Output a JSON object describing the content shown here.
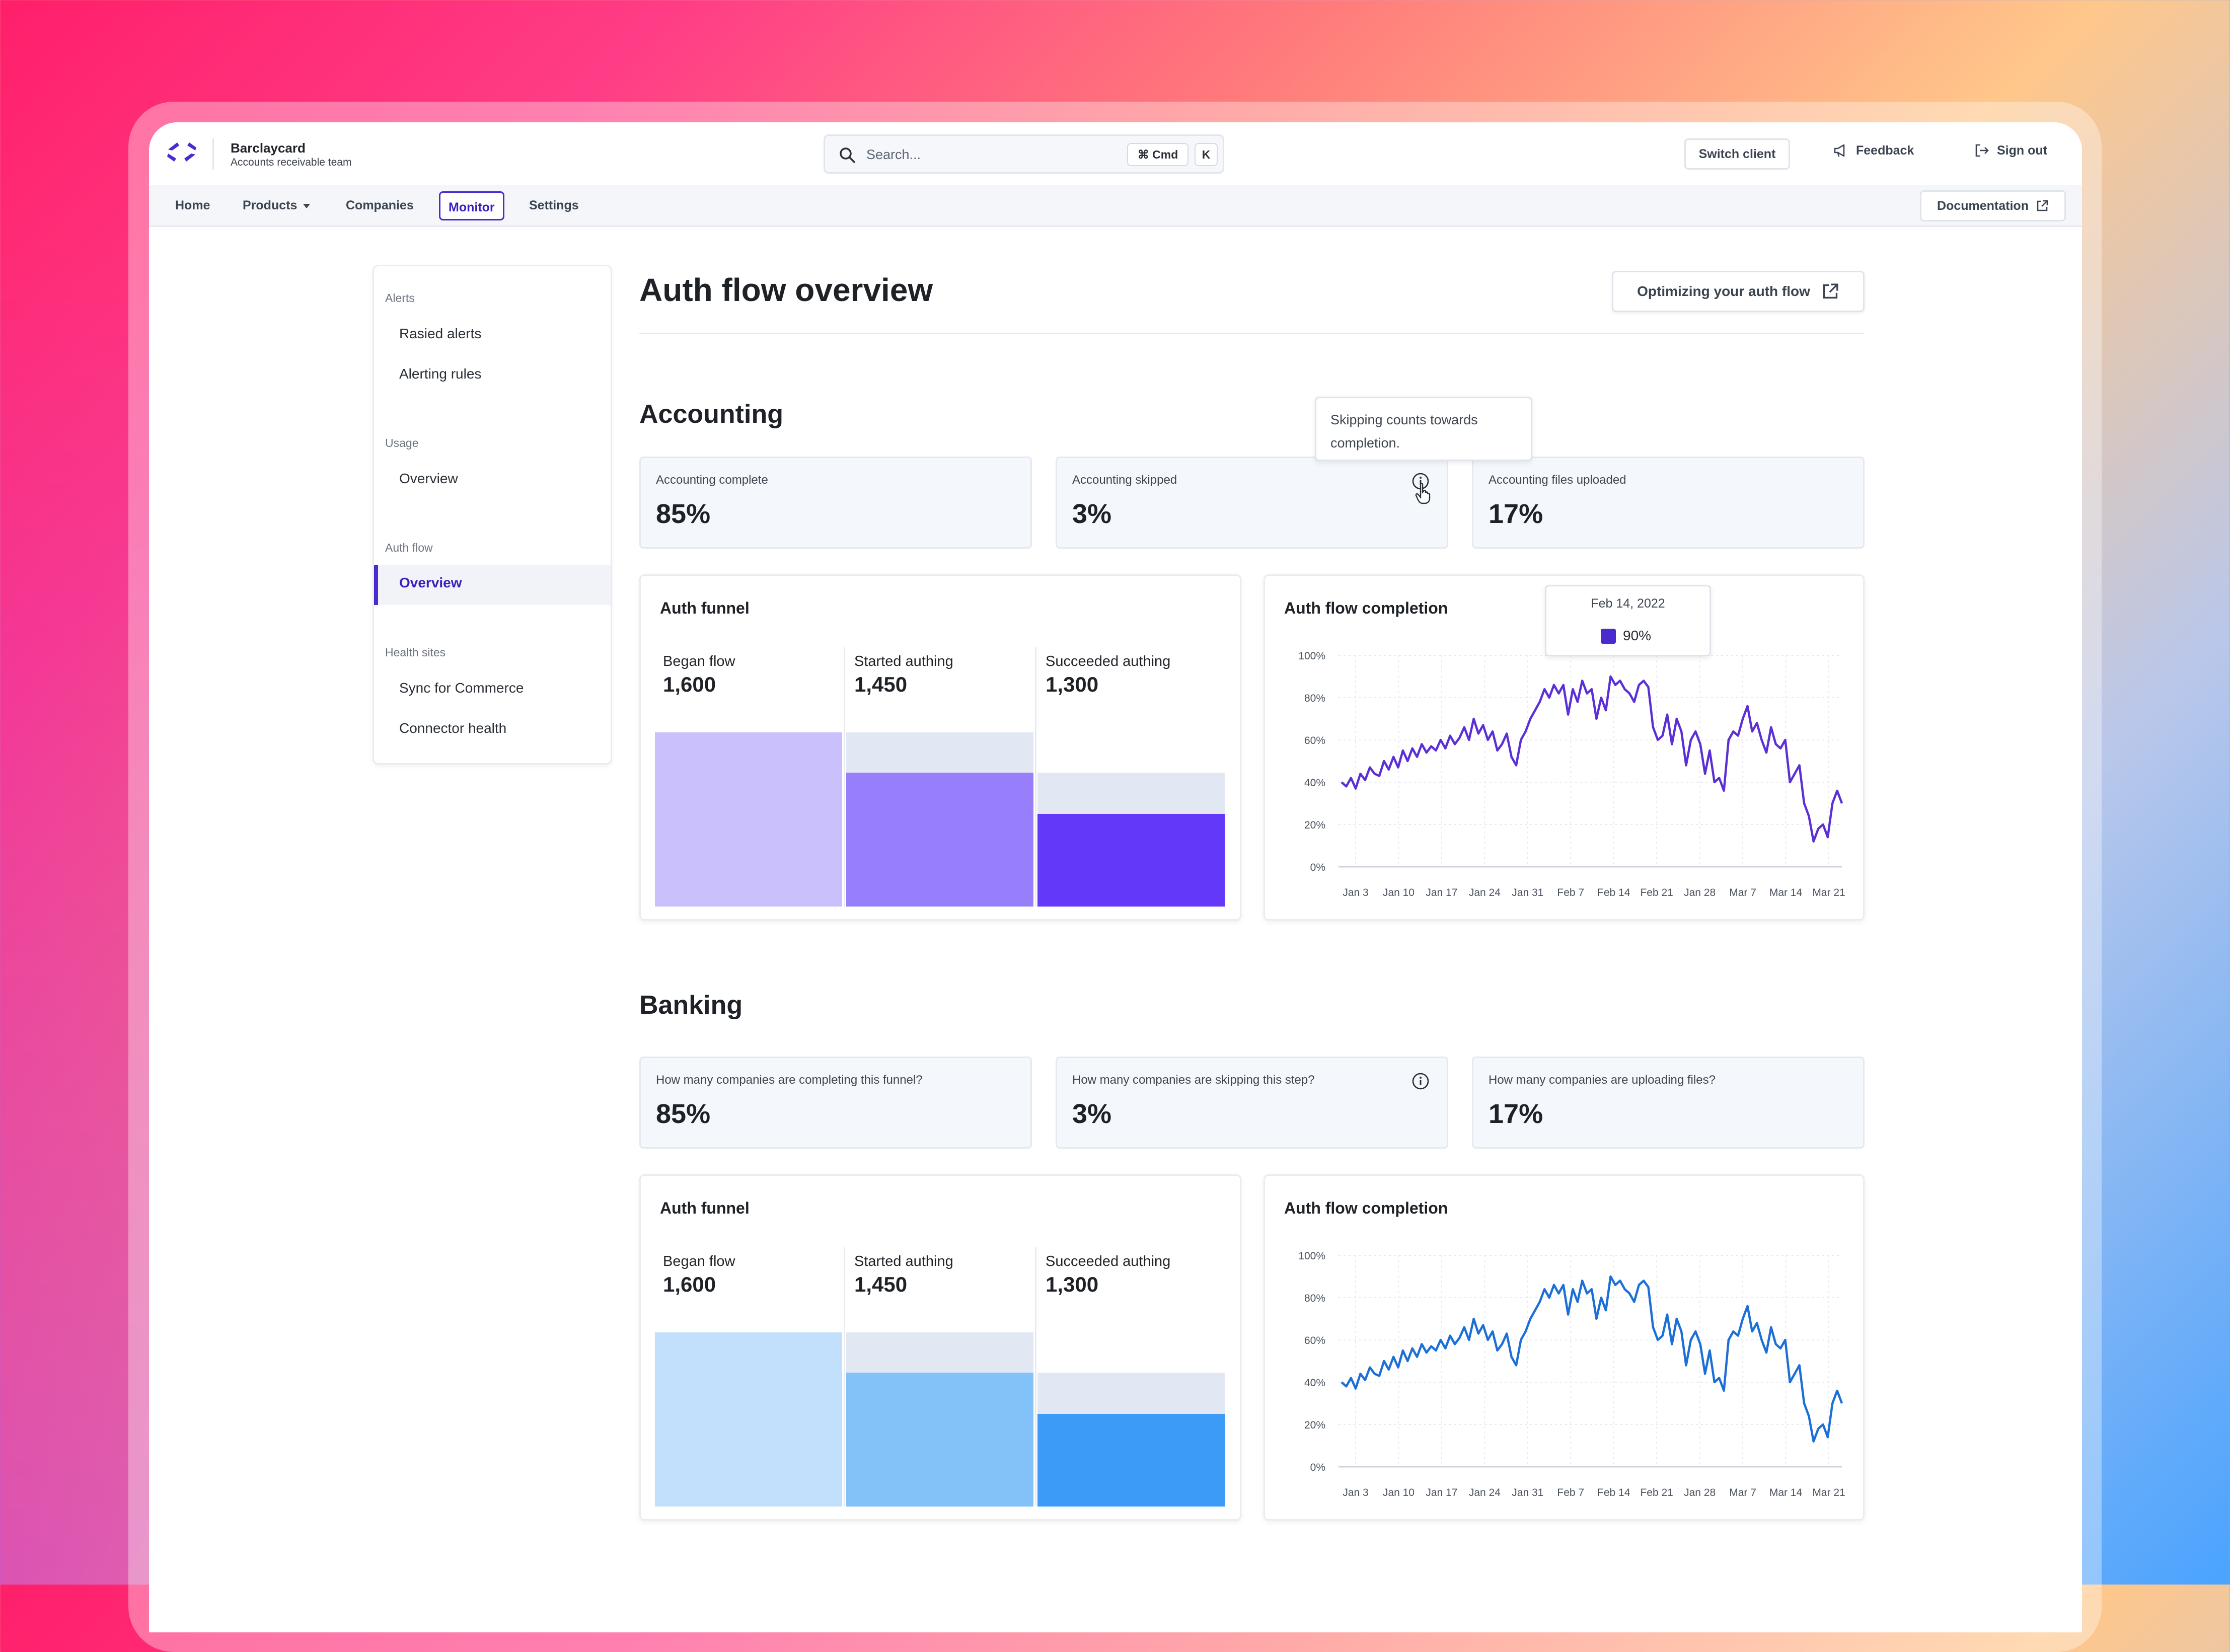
{
  "header": {
    "brand_name": "Barclaycard",
    "brand_subtitle": "Accounts receivable team",
    "search_placeholder": "Search...",
    "kbd_cmd": "⌘ Cmd",
    "kbd_k": "K",
    "switch_client": "Switch client",
    "feedback": "Feedback",
    "sign_out": "Sign out"
  },
  "nav": {
    "items": [
      "Home",
      "Products",
      "Companies",
      "Monitor",
      "Settings"
    ],
    "active": "Monitor",
    "documentation": "Documentation"
  },
  "sidebar": {
    "groups": [
      {
        "label": "Alerts",
        "items": [
          "Rasied alerts",
          "Alerting rules"
        ]
      },
      {
        "label": "Usage",
        "items": [
          "Overview"
        ]
      },
      {
        "label": "Auth flow",
        "items": [
          "Overview"
        ]
      },
      {
        "label": "Health sites",
        "items": [
          "Sync for Commerce",
          "Connector health"
        ]
      }
    ],
    "active_item": "Overview"
  },
  "page": {
    "title": "Auth flow overview",
    "doc_button": "Optimizing your auth flow"
  },
  "accounting": {
    "title": "Accounting",
    "stats": [
      {
        "label": "Accounting complete",
        "value": "85%"
      },
      {
        "label": "Accounting skipped",
        "value": "3%"
      },
      {
        "label": "Accounting files uploaded",
        "value": "17%"
      }
    ],
    "info_tooltip": "Skipping counts towards completion.",
    "funnel": {
      "title": "Auth funnel",
      "steps": [
        {
          "label": "Began flow",
          "value": "1,600"
        },
        {
          "label": "Started authing",
          "value": "1,450"
        },
        {
          "label": "Succeeded authing",
          "value": "1,300"
        }
      ]
    },
    "completion": {
      "title": "Auth flow completion",
      "tooltip_date": "Feb 14, 2022",
      "tooltip_value": "90%"
    }
  },
  "banking": {
    "title": "Banking",
    "stats": [
      {
        "label": "How many companies are completing this funnel?",
        "value": "85%"
      },
      {
        "label": "How many companies are skipping this step?",
        "value": "3%"
      },
      {
        "label": "How many companies are uploading files?",
        "value": "17%"
      }
    ],
    "funnel": {
      "title": "Auth funnel",
      "steps": [
        {
          "label": "Began flow",
          "value": "1,600"
        },
        {
          "label": "Started authing",
          "value": "1,450"
        },
        {
          "label": "Succeeded authing",
          "value": "1,300"
        }
      ]
    },
    "completion": {
      "title": "Auth flow completion"
    }
  },
  "colors": {
    "accent": "#4a2bd0",
    "accounting_line": "#5a2fd6",
    "banking_line": "#1c6fd6",
    "acc_funnel": [
      "#c9c0fc",
      "#977ffb",
      "#6338f8"
    ],
    "bank_funnel": [
      "#c2dffb",
      "#83c1f9",
      "#3c9bf6"
    ],
    "ghost": "#e1e8f3"
  },
  "chart_data": [
    {
      "type": "bar",
      "title": "Auth funnel",
      "categories": [
        "Began flow",
        "Started authing",
        "Succeeded authing"
      ],
      "values": [
        1600,
        1450,
        1300
      ],
      "ylim": [
        0,
        1600
      ]
    },
    {
      "type": "line",
      "title": "Auth flow completion",
      "x_ticks": [
        "Jan 3",
        "Jan 10",
        "Jan 17",
        "Jan 24",
        "Jan 31",
        "Feb 7",
        "Feb 14",
        "Feb 21",
        "Jan 28",
        "Mar 7",
        "Mar 14",
        "Mar 21"
      ],
      "y_ticks": [
        "100%",
        "80%",
        "60%",
        "40%",
        "20%",
        "0%"
      ],
      "ylim": [
        0,
        100
      ],
      "grid": true,
      "series": [
        {
          "values": [
            40,
            38,
            42,
            37,
            44,
            41,
            47,
            44,
            43,
            50,
            46,
            52,
            47,
            55,
            50,
            56,
            52,
            58,
            54,
            57,
            55,
            60,
            56,
            62,
            58,
            61,
            66,
            60,
            70,
            63,
            67,
            60,
            64,
            55,
            58,
            63,
            52,
            48,
            60,
            64,
            70,
            74,
            78,
            84,
            80,
            86,
            82,
            86,
            72,
            84,
            78,
            88,
            82,
            84,
            70,
            80,
            74,
            90,
            86,
            88,
            84,
            82,
            78,
            86,
            88,
            85,
            66,
            60,
            62,
            72,
            58,
            70,
            64,
            48,
            60,
            64,
            58,
            44,
            55,
            40,
            42,
            36,
            60,
            64,
            62,
            70,
            76,
            64,
            68,
            60,
            54,
            66,
            58,
            56,
            60,
            40,
            44,
            48,
            30,
            24,
            12,
            18,
            20,
            14,
            30,
            36,
            30
          ]
        },
        {
          "values": [
            40,
            38,
            42,
            37,
            44,
            41,
            47,
            44,
            43,
            50,
            46,
            52,
            47,
            55,
            50,
            56,
            52,
            58,
            54,
            57,
            55,
            60,
            56,
            62,
            58,
            61,
            66,
            60,
            70,
            63,
            67,
            60,
            64,
            55,
            58,
            63,
            52,
            48,
            60,
            64,
            70,
            74,
            78,
            84,
            80,
            86,
            82,
            86,
            72,
            84,
            78,
            88,
            82,
            84,
            70,
            80,
            74,
            90,
            86,
            88,
            84,
            82,
            78,
            86,
            88,
            85,
            66,
            60,
            62,
            72,
            58,
            70,
            64,
            48,
            60,
            64,
            58,
            44,
            55,
            40,
            42,
            36,
            60,
            64,
            62,
            70,
            76,
            64,
            68,
            60,
            54,
            66,
            58,
            56,
            60,
            40,
            44,
            48,
            30,
            24,
            12,
            18,
            20,
            14,
            30,
            36,
            30
          ]
        }
      ]
    }
  ]
}
